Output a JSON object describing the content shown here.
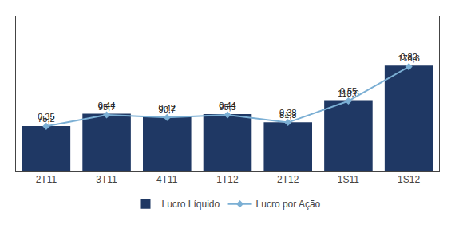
{
  "chart_data": {
    "type": "bar",
    "categories": [
      "2T11",
      "3T11",
      "4T11",
      "1T12",
      "2T12",
      "1S11",
      "1S12"
    ],
    "series": [
      {
        "name": "Lucro Líquido",
        "type": "bar",
        "color": "#1F3864",
        "values": [
          75.2,
          95.7,
          90.7,
          95.3,
          81.3,
          118.6,
          176.6
        ],
        "value_labels": [
          "75,2",
          "95,7",
          "90,7",
          "95,3",
          "81,3",
          "118,6",
          "176,6"
        ]
      },
      {
        "name": "Lucro por Ação",
        "type": "line",
        "axis": "y2",
        "color": "#7BAFD4",
        "marker": "diamond",
        "values": [
          0.35,
          0.44,
          0.42,
          0.44,
          0.38,
          0.55,
          0.82
        ],
        "value_labels": [
          "0,35",
          "0,44",
          "0,42",
          "0,44",
          "0,38",
          "0,55",
          "0,82"
        ]
      }
    ],
    "ylim": [
      0,
      260
    ],
    "yticks": [],
    "y2lim": [
      0,
      1.22
    ],
    "y2ticks": [],
    "data_labels": true,
    "tick_labels": "x",
    "grid": false,
    "legend": "bottom"
  }
}
